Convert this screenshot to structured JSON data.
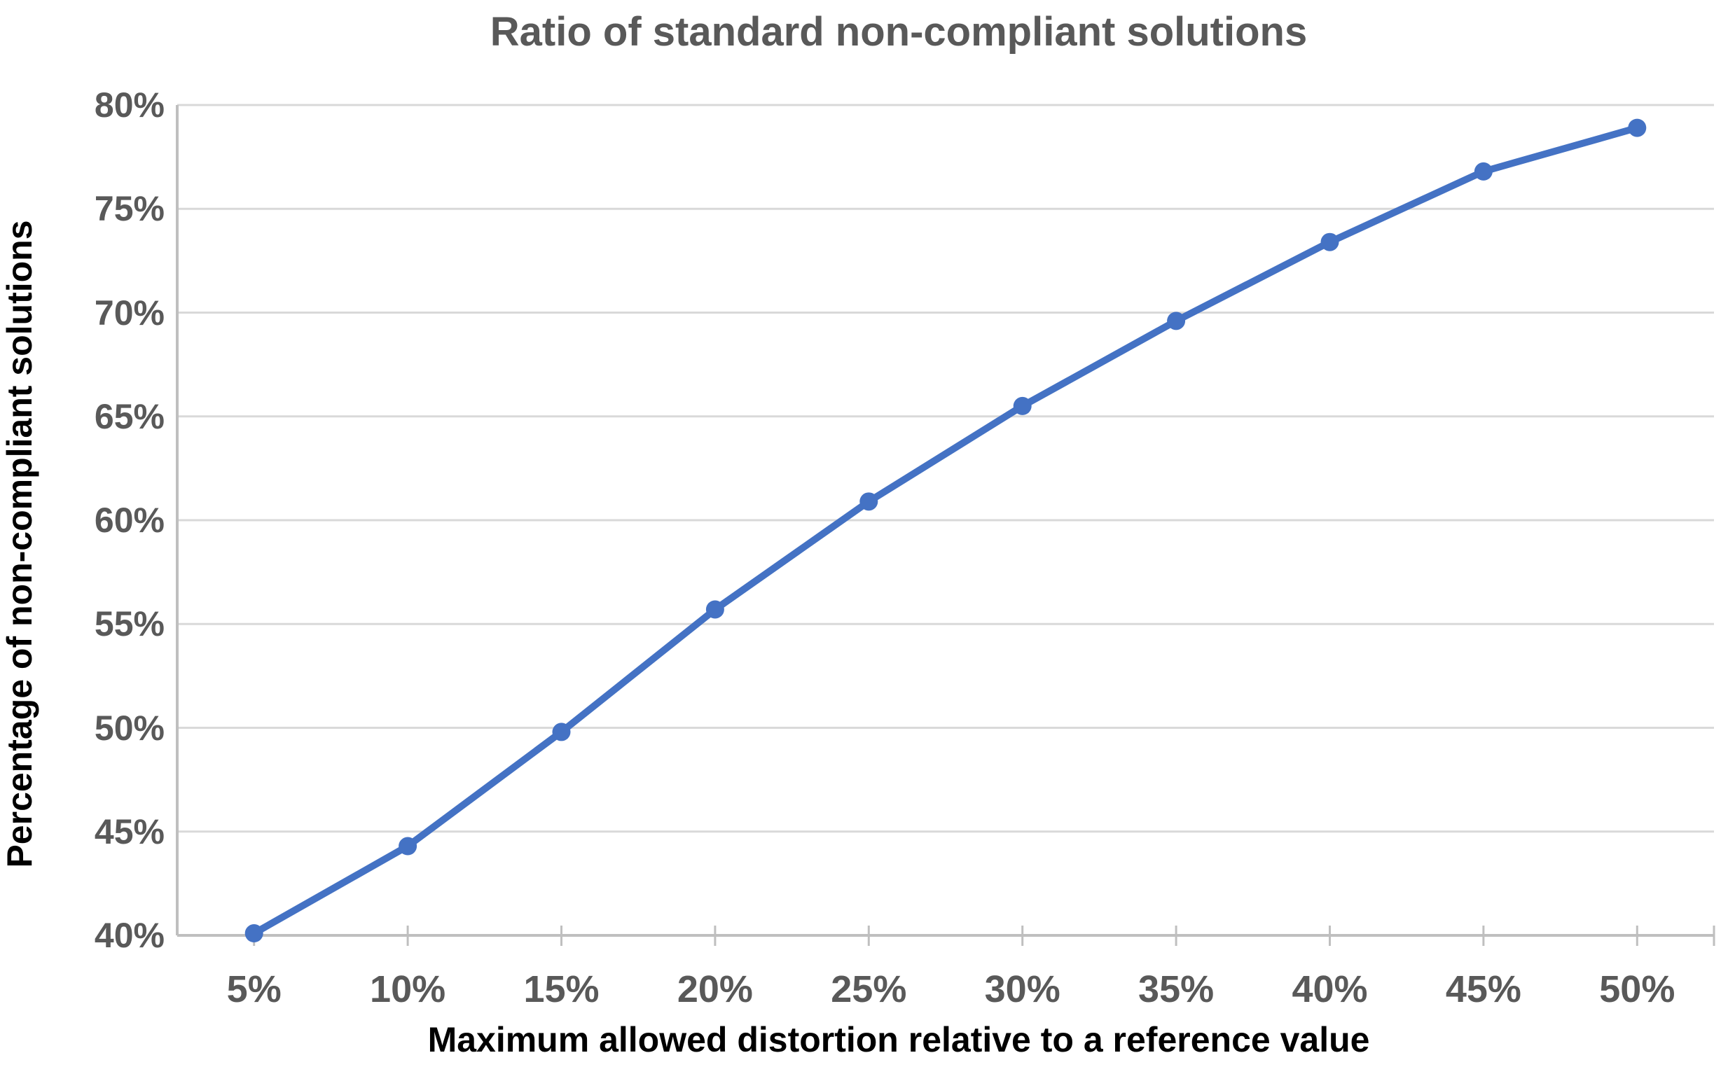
{
  "chart_data": {
    "type": "line",
    "title": "Ratio of standard non-compliant solutions",
    "xlabel": "Maximum allowed distortion relative to a reference value",
    "ylabel": "Percentage of non-compliant solutions",
    "categories": [
      "5%",
      "10%",
      "15%",
      "20%",
      "25%",
      "30%",
      "35%",
      "40%",
      "45%",
      "50%"
    ],
    "x_values": [
      5,
      10,
      15,
      20,
      25,
      30,
      35,
      40,
      45,
      50
    ],
    "values": [
      40.1,
      44.3,
      49.8,
      55.7,
      60.9,
      65.5,
      69.6,
      73.4,
      76.8,
      78.9
    ],
    "ylim": [
      40,
      80
    ],
    "ytick_step": 5,
    "ytick_labels": [
      "40%",
      "45%",
      "50%",
      "55%",
      "60%",
      "65%",
      "70%",
      "75%",
      "80%"
    ],
    "grid": true,
    "legend": "none",
    "colors": {
      "line": "#4472C4",
      "marker": "#4472C4",
      "gridline": "#D9D9D9",
      "axis_line": "#BFBFBF",
      "tick_text": "#595959",
      "title_text": "#595959",
      "axis_title_text": "#000000"
    }
  }
}
